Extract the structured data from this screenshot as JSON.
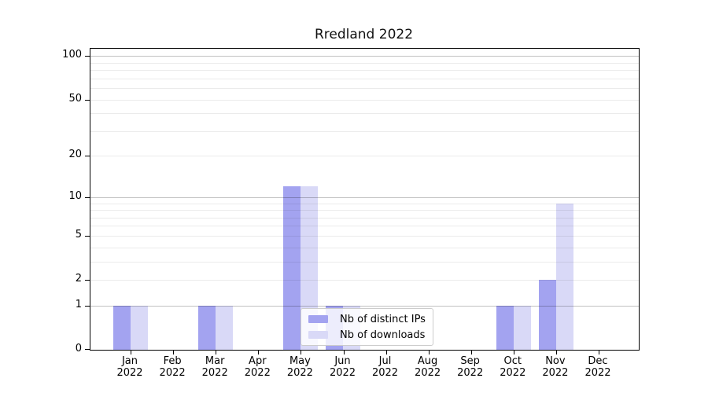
{
  "chart_data": {
    "type": "bar",
    "title": "Rredland 2022",
    "categories": [
      "Jan",
      "Feb",
      "Mar",
      "Apr",
      "May",
      "Jun",
      "Jul",
      "Aug",
      "Sep",
      "Oct",
      "Nov",
      "Dec"
    ],
    "year_label": "2022",
    "series": [
      {
        "name": "Nb of distinct IPs",
        "color": "#a3a3f0",
        "values": [
          1,
          0,
          1,
          0,
          12,
          1,
          0,
          0,
          0,
          1,
          2,
          0
        ]
      },
      {
        "name": "Nb of downloads",
        "color": "#d9d9f7",
        "values": [
          1,
          0,
          1,
          0,
          12,
          1,
          0,
          0,
          0,
          1,
          9,
          0
        ]
      }
    ],
    "xlabel": "",
    "ylabel": "",
    "yscale": "log1p",
    "ylim": [
      0,
      112
    ],
    "yticks": [
      0,
      1,
      2,
      5,
      10,
      20,
      50,
      100
    ],
    "major_gridlines": [
      1,
      10,
      100
    ],
    "minor_gridlines": [
      2,
      3,
      4,
      5,
      6,
      7,
      8,
      9,
      20,
      30,
      40,
      50,
      60,
      70,
      80,
      90
    ],
    "grid": true,
    "legend_position": "lower center",
    "colors": {
      "major_grid": "#c6c6c6",
      "minor_grid": "#ededed",
      "spine": "#000000",
      "background": "#ffffff"
    }
  }
}
